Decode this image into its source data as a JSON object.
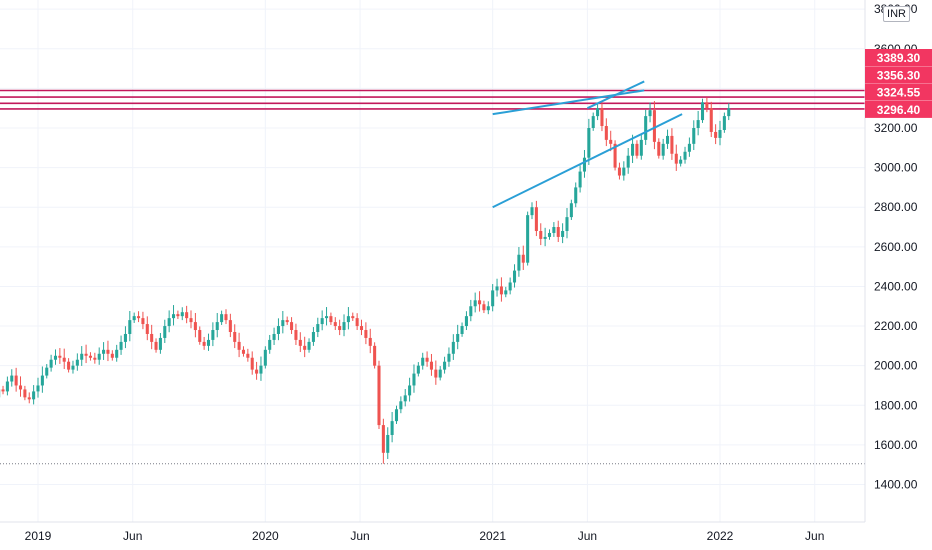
{
  "chart_data": {
    "type": "candlestick",
    "currency": "INR",
    "x_tick_labels": [
      "2019",
      "Jun",
      "2020",
      "Jun",
      "2021",
      "Jun",
      "2022",
      "Jun"
    ],
    "y_tick_labels": [
      "1400.00",
      "1600.00",
      "1800.00",
      "2000.00",
      "2200.00",
      "2400.00",
      "2600.00",
      "2800.00",
      "3000.00",
      "3200.00",
      "3400.00",
      "3600.00",
      "3800.00"
    ],
    "ylim": [
      1240,
      3820
    ],
    "price_levels": [
      {
        "label": "3389.30",
        "value": 3389.3
      },
      {
        "label": "3356.30",
        "value": 3356.3
      },
      {
        "label": "3324.55",
        "value": 3324.55
      },
      {
        "label": "3296.40",
        "value": 3296.4
      }
    ],
    "low_marker": 1505,
    "candles_weekly_approx": {
      "start": "2018-10",
      "close": [
        1930,
        1890,
        1860,
        1840,
        1880,
        1870,
        1920,
        1950,
        1900,
        1880,
        1840,
        1830,
        1870,
        1900,
        1950,
        1990,
        2030,
        2050,
        2040,
        2020,
        1980,
        2000,
        2030,
        2060,
        2050,
        2040,
        2030,
        2060,
        2080,
        2060,
        2040,
        2080,
        2120,
        2160,
        2230,
        2250,
        2240,
        2210,
        2160,
        2120,
        2080,
        2140,
        2200,
        2240,
        2260,
        2250,
        2270,
        2240,
        2220,
        2180,
        2120,
        2100,
        2130,
        2180,
        2220,
        2260,
        2230,
        2170,
        2120,
        2080,
        2060,
        2040,
        1980,
        1960,
        2000,
        2080,
        2130,
        2160,
        2200,
        2230,
        2220,
        2180,
        2130,
        2100,
        2080,
        2120,
        2170,
        2210,
        2240,
        2250,
        2220,
        2200,
        2180,
        2220,
        2250,
        2240,
        2200,
        2180,
        2140,
        2100,
        2000,
        1700,
        1560,
        1650,
        1720,
        1780,
        1820,
        1850,
        1900,
        1960,
        2000,
        2040,
        2020,
        1980,
        1940,
        1980,
        2020,
        2060,
        2120,
        2160,
        2200,
        2250,
        2300,
        2330,
        2310,
        2280,
        2300,
        2380,
        2400,
        2360,
        2380,
        2420,
        2480,
        2560,
        2520,
        2760,
        2800,
        2680,
        2640,
        2650,
        2670,
        2700,
        2650,
        2680,
        2750,
        2820,
        2900,
        2980,
        3050,
        3200,
        3260,
        3300,
        3210,
        3140,
        3120,
        3000,
        2960,
        3000,
        3060,
        3120,
        3060,
        3140,
        3260,
        3290,
        3130,
        3060,
        3120,
        3160,
        3070,
        3020,
        3040,
        3080,
        3120,
        3200,
        3240,
        3330,
        3300,
        3180,
        3150,
        3190,
        3260,
        3300
      ]
    },
    "trendlines": [
      {
        "from": [
          "2021-01",
          2800
        ],
        "to": [
          "2021-11",
          3270
        ]
      },
      {
        "from": [
          "2021-01",
          3270
        ],
        "to": [
          "2021-09",
          3390
        ]
      },
      {
        "from": [
          "2021-06",
          3300
        ],
        "to": [
          "2021-09",
          3435
        ]
      }
    ]
  }
}
